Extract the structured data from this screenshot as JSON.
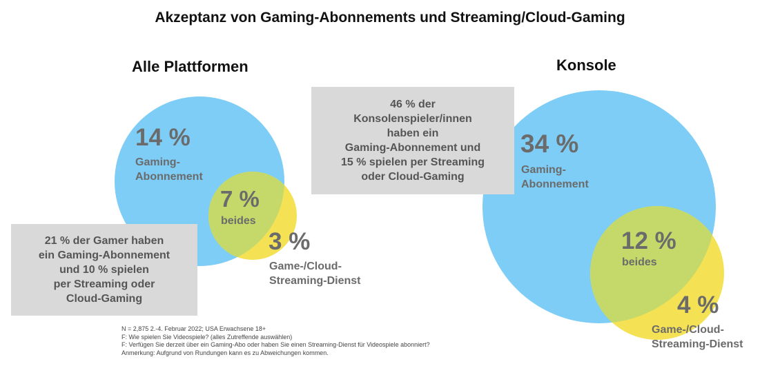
{
  "title": "Akzeptanz von Gaming-Abonnements und Streaming/Cloud-Gaming",
  "colors": {
    "subscription": "#7dcdf6",
    "streaming": "#f5e154",
    "overlap": "#c5d96a",
    "callout_bg": "#d9d9d9",
    "value_text": "#6b6b6b"
  },
  "panels": {
    "all": {
      "heading": "Alle Plattformen",
      "subscription": {
        "value": "14 %",
        "label_line1": "Gaming-",
        "label_line2": "Abonnement"
      },
      "both": {
        "value": "7 %",
        "label": "beides"
      },
      "streaming": {
        "value": "3 %",
        "label_line1": "Game-/Cloud-",
        "label_line2": "Streaming-Dienst"
      },
      "callout": [
        "21 % der Gamer haben",
        "ein Gaming-Abonnement",
        "und 10 % spielen",
        "per Streaming oder",
        "Cloud-Gaming"
      ]
    },
    "console": {
      "heading": "Konsole",
      "subscription": {
        "value": "34 %",
        "label_line1": "Gaming-",
        "label_line2": "Abonnement"
      },
      "both": {
        "value": "12 %",
        "label": "beides"
      },
      "streaming": {
        "value": "4 %",
        "label_line1": "Game-/Cloud-",
        "label_line2": "Streaming-Dienst"
      },
      "callout": [
        "46 % der",
        "Konsolenspieler/innen",
        "haben ein",
        "Gaming-Abonnement und",
        "15 % spielen per Streaming",
        "oder Cloud-Gaming"
      ]
    }
  },
  "footnotes": [
    "N = 2,875 2.-4. Februar 2022; USA Erwachsene 18+",
    "F: Wie spielen Sie Videospiele? (alles Zutreffende auswählen)",
    "F: Verfügen Sie derzeit über ein Gaming-Abo oder haben Sie einen Streaming-Dienst für Videospiele abonniert?",
    "Anmerkung: Aufgrund von Rundungen kann es zu Abweichungen kommen."
  ]
}
